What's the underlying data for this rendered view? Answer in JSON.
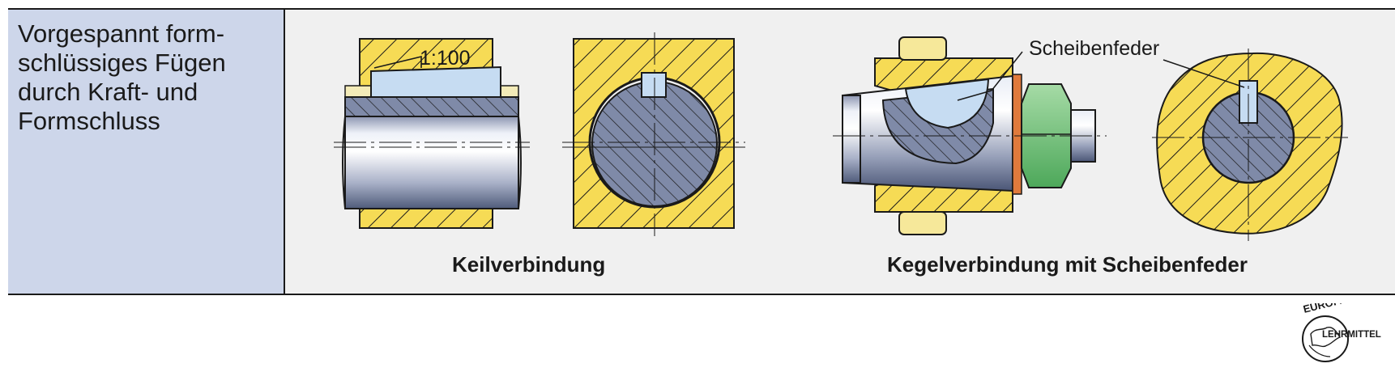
{
  "description_lines": [
    "Vorgespannt form-",
    "schlüssiges Fügen",
    "durch Kraft- und",
    "Formschluss"
  ],
  "caption_left": "Keilverbindung",
  "caption_right": "Kegelverbindung mit Scheibenfeder",
  "label_taper": "1:100",
  "label_woodruff": "Scheibenfeder",
  "logo": {
    "top": "EUROPA",
    "bottom": "LEHRMITTEL"
  },
  "colors": {
    "section_yellow": "#f6db55",
    "shaft_steel": "#7f8aa8",
    "key_blue": "#c6dcf2",
    "nut_green": "#6cbf72",
    "washer_orange": "#e07a3c",
    "label_cell": "#cdd6ea",
    "panel": "#f0f0f0"
  }
}
